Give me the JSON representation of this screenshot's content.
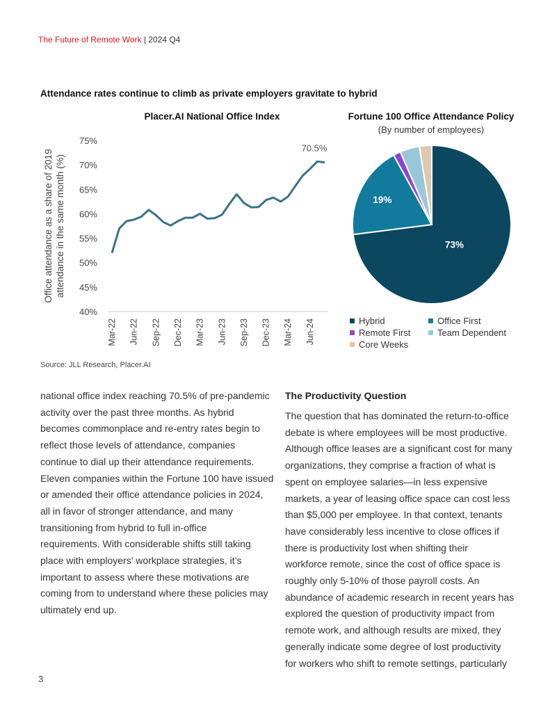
{
  "header": {
    "title": "The Future of Remote Work",
    "separator": "|",
    "period": "2024 Q4"
  },
  "figure_title": "Attendance rates continue to climb as private employers gravitate to hybrid",
  "source": "Source: JLL Research, Placer.AI",
  "chart_data": [
    {
      "type": "line",
      "title": "Placer.AI National Office Index",
      "ylabel": "Office attendance as a share of 2019 attendance in the same month (%)",
      "ylabel_lines": [
        "Office attendance as a share of 2019",
        "attendance in the same month (%)"
      ],
      "xlabel": "",
      "ylim": [
        40,
        75
      ],
      "yticks": [
        "40%",
        "45%",
        "50%",
        "55%",
        "60%",
        "65%",
        "70%",
        "75%"
      ],
      "ytick_values": [
        40,
        45,
        50,
        55,
        60,
        65,
        70,
        75
      ],
      "xtick_labels": [
        "Mar-22",
        "Jun-22",
        "Sep-22",
        "Dec-22",
        "Mar-23",
        "Jun-23",
        "Sep-23",
        "Dec-23",
        "Mar-24",
        "Jun-24"
      ],
      "x": [
        "Mar-22",
        "Apr-22",
        "May-22",
        "Jun-22",
        "Jul-22",
        "Aug-22",
        "Sep-22",
        "Oct-22",
        "Nov-22",
        "Dec-22",
        "Jan-23",
        "Feb-23",
        "Mar-23",
        "Apr-23",
        "May-23",
        "Jun-23",
        "Jul-23",
        "Aug-23",
        "Sep-23",
        "Oct-23",
        "Nov-23",
        "Dec-23",
        "Jan-24",
        "Feb-24",
        "Mar-24",
        "Apr-24",
        "May-24",
        "Jun-24",
        "Jul-24",
        "Aug-24"
      ],
      "values": [
        52,
        57,
        58.5,
        58.8,
        59.4,
        60.8,
        59.7,
        58.3,
        57.6,
        58.5,
        59.2,
        59.2,
        60,
        59,
        59.1,
        59.8,
        62,
        64,
        62.2,
        61.3,
        61.4,
        62.8,
        63.3,
        62.5,
        63.5,
        65.7,
        67.8,
        69.2,
        70.7,
        70.5
      ],
      "annotation": "70.5%",
      "line_color": "#3a7286",
      "grid": false
    },
    {
      "type": "pie",
      "title": "Fortune 100 Office Attendance Policy",
      "subtitle": "(By number of employees)",
      "categories": [
        "Hybrid",
        "Office First",
        "Remote First",
        "Team Dependent",
        "Core Weeks"
      ],
      "values": [
        73,
        19,
        1.5,
        4,
        2.5
      ],
      "data_labels": [
        "73%",
        "19%",
        "",
        "",
        ""
      ],
      "colors": [
        "#0b475e",
        "#127a9c",
        "#8e44d6",
        "#98c8d8",
        "#e0c8b0"
      ],
      "legend": "bottom"
    }
  ],
  "left_column": {
    "lines": [
      "national office index reaching 70.5% of pre-pandemic",
      "activity over the past three months. As hybrid",
      "becomes commonplace and re-entry rates begin to",
      "reflect those levels of attendance, companies",
      "continue to dial up their attendance requirements.",
      "Eleven companies within the Fortune 100 have issued",
      "or amended their office attendance policies in 2024,",
      "all in favor of stronger attendance, and many",
      "transitioning from hybrid to full in-office",
      "requirements. With considerable shifts still taking",
      "place with employers’ workplace strategies, it’s",
      "important to assess where these motivations are",
      "coming from to understand where these policies may",
      "ultimately end up."
    ]
  },
  "right_column": {
    "heading": "The Productivity Question",
    "lines": [
      "The question that has dominated the return-to-office",
      "debate is where employees will be most productive.",
      "Although office leases are a significant cost for many",
      "organizations, they comprise a fraction of what is",
      "spent on employee salaries—in less expensive",
      "markets, a year of leasing office space can cost less",
      "than $5,000 per employee. In that context, tenants",
      "have considerably less incentive to close offices if",
      "there is productivity lost when shifting their",
      "workforce remote, since the cost of office space is",
      "roughly only 5-10% of those payroll costs. An",
      "abundance of academic research in recent years has",
      "explored the question of productivity impact from",
      "remote work, and although results are mixed, they",
      "generally indicate some degree of lost productivity",
      "for workers who shift to remote settings, particularly"
    ]
  },
  "page_number": "3"
}
